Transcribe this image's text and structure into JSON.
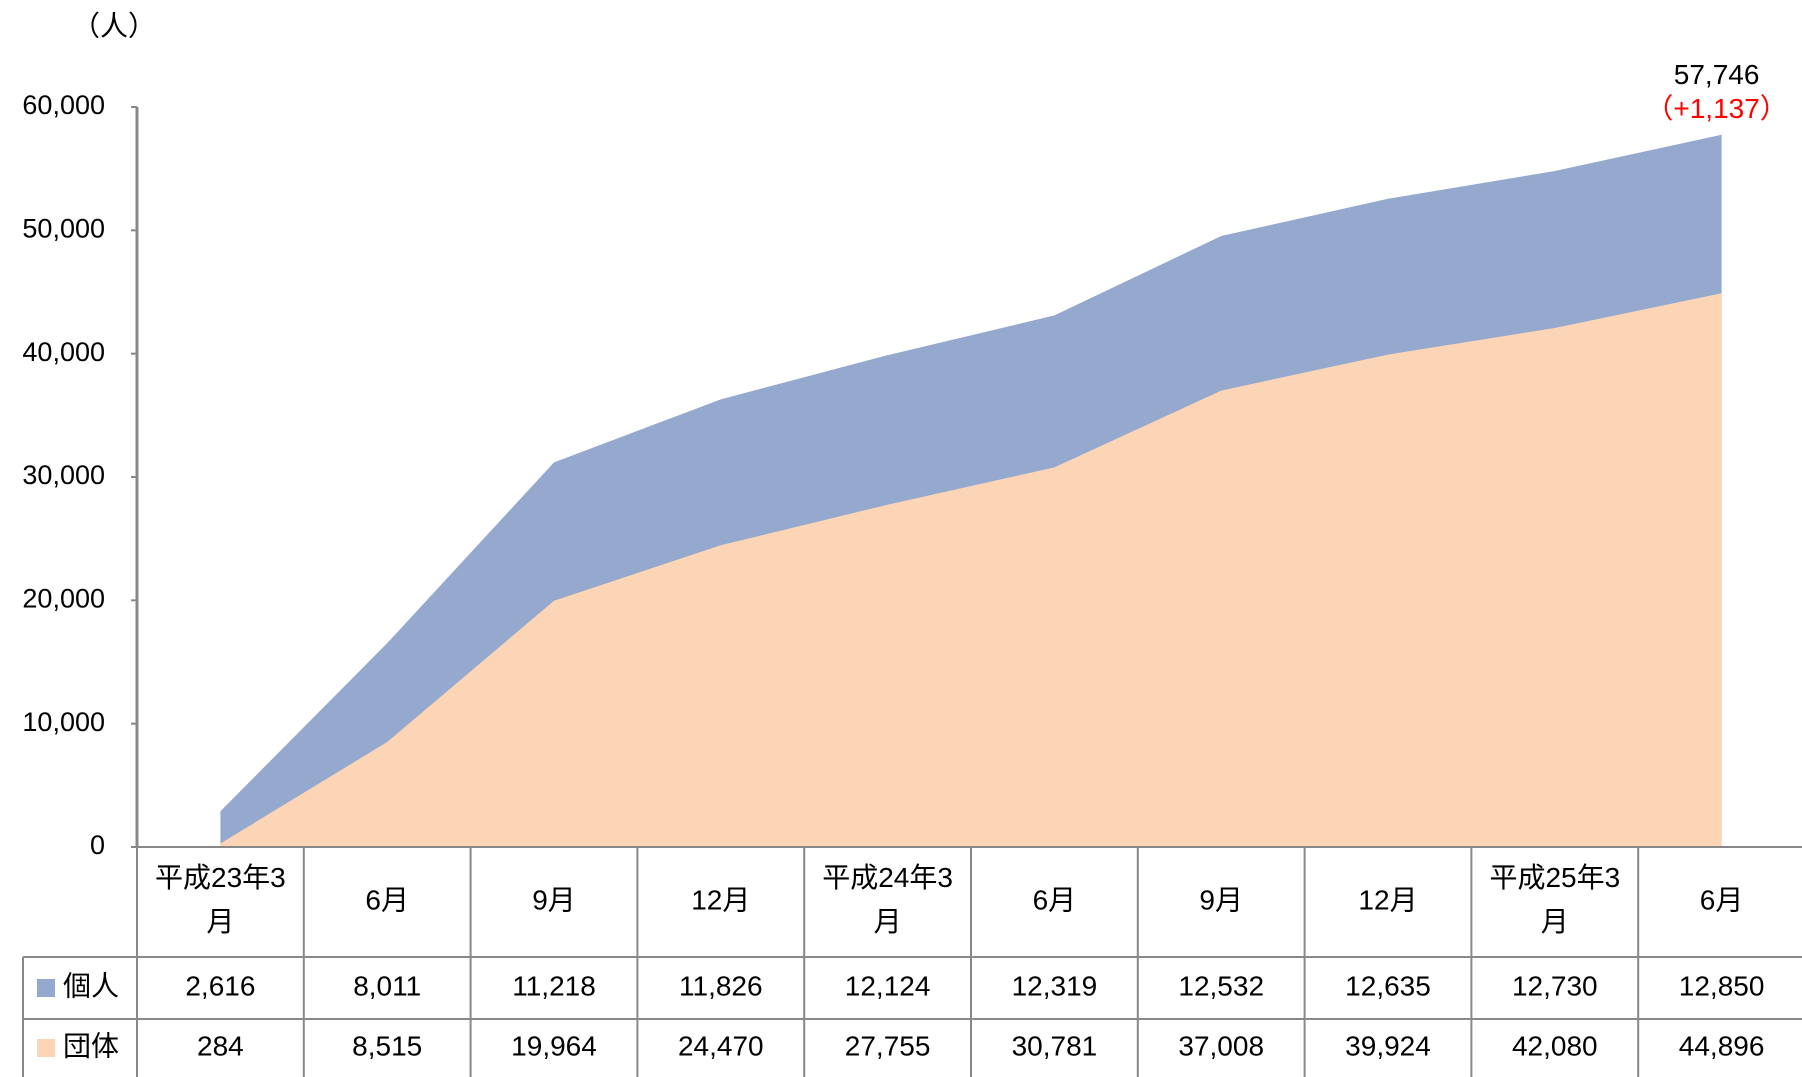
{
  "chart_data": {
    "type": "stacked_area",
    "unit_label": "（人）",
    "categories": [
      "平成23年3月",
      "6月",
      "9月",
      "12月",
      "平成24年3月",
      "6月",
      "9月",
      "12月",
      "平成25年3月",
      "6月"
    ],
    "series": [
      {
        "name": "団体",
        "color": "#fbd5b5",
        "values": [
          284,
          8515,
          19964,
          24470,
          27755,
          30781,
          37008,
          39924,
          42080,
          44896
        ],
        "value_labels": [
          "284",
          "8,515",
          "19,964",
          "24,470",
          "27,755",
          "30,781",
          "37,008",
          "39,924",
          "42,080",
          "44,896"
        ]
      },
      {
        "name": "個人",
        "color": "#95a9cf",
        "values": [
          2616,
          8011,
          11218,
          11826,
          12124,
          12319,
          12532,
          12635,
          12730,
          12850
        ],
        "value_labels": [
          "2,616",
          "8,011",
          "11,218",
          "11,826",
          "12,124",
          "12,319",
          "12,532",
          "12,635",
          "12,730",
          "12,850"
        ]
      }
    ],
    "annotations": [
      "57,746",
      "（+1,137）"
    ],
    "ylim": [
      0,
      60000
    ],
    "yticks": [
      0,
      {
        "value": 10000,
        "label": "10,000"
      },
      {
        "value": 20000,
        "label": "20,000"
      },
      {
        "value": 30000,
        "label": "30,000"
      },
      {
        "value": 40000,
        "label": "40,000"
      },
      {
        "value": 50000,
        "label": "50,000"
      },
      {
        "value": 60000,
        "label": "60,000"
      }
    ]
  }
}
